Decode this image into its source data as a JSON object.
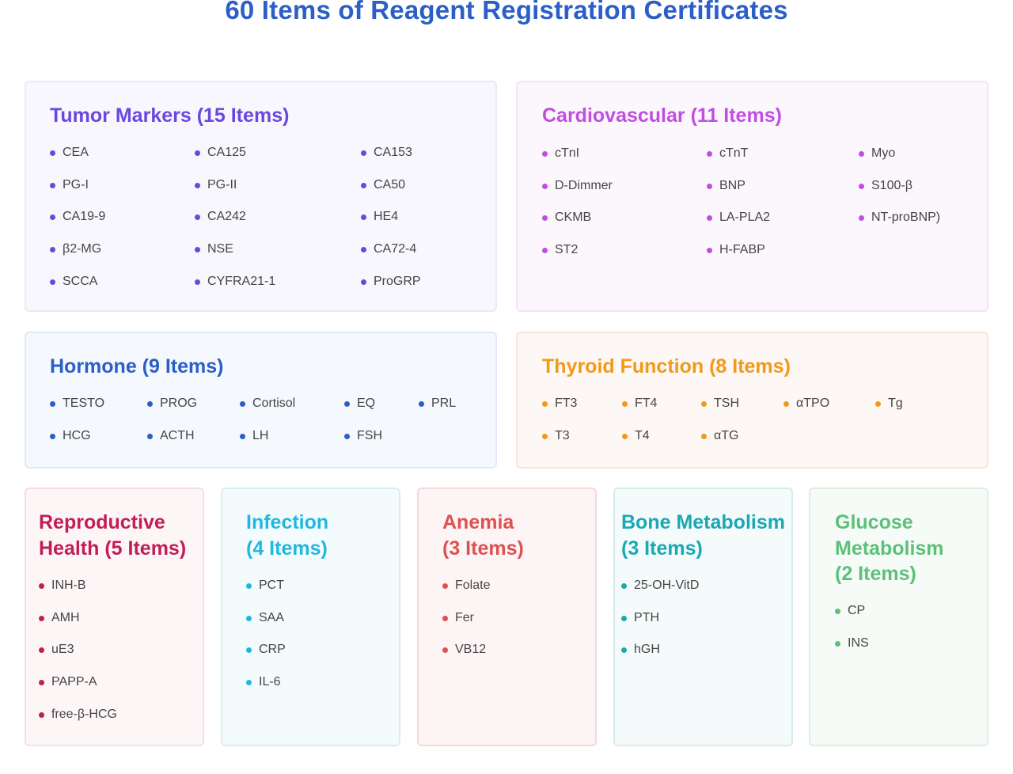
{
  "page_title": "60 Items of Reagent Registration Certificates",
  "colors": {
    "title": "#2b5fc7",
    "tumor": "#6a48e0",
    "cardio": "#c04ee0",
    "hormone": "#2b5fc7",
    "thyroid": "#f09a1a",
    "repro": "#c21d55",
    "infection": "#1fb8e0",
    "anemia": "#e05050",
    "bone": "#1aa8b4",
    "glucose": "#5cc07a"
  },
  "tumor": {
    "title": "Tumor Markers (15 Items)",
    "items": [
      "CEA",
      "CA125",
      "CA153",
      "PG-I",
      "PG-II",
      "CA50",
      "CA19-9",
      "CA242",
      "HE4",
      "β2-MG",
      "NSE",
      "CA72-4",
      "SCCA",
      "CYFRA21-1",
      "ProGRP"
    ]
  },
  "cardio": {
    "title": "Cardiovascular (11 Items)",
    "items": [
      "cTnI",
      "cTnT",
      "Myo",
      "D-Dimmer",
      "BNP",
      "S100-β",
      "CKMB",
      "LA-PLA2",
      "NT-proBNP)",
      "ST2",
      "H-FABP"
    ]
  },
  "hormone": {
    "title": "Hormone (9 Items)",
    "items": [
      "TESTO",
      "PROG",
      "Cortisol",
      "EQ",
      "PRL",
      "HCG",
      "ACTH",
      "LH",
      "FSH"
    ]
  },
  "thyroid": {
    "title": "Thyroid Function (8 Items)",
    "items": [
      "FT3",
      "FT4",
      "TSH",
      "αTPO",
      "Tg",
      "T3",
      "T4",
      "αTG"
    ]
  },
  "repro": {
    "title_line1": "Reproductive",
    "title_line2": "Health (5 Items)",
    "items": [
      "INH-B",
      "AMH",
      "uE3",
      "PAPP-A",
      "free-β-HCG"
    ]
  },
  "infection": {
    "title_line1": "Infection",
    "title_line2": "(4 Items)",
    "items": [
      "PCT",
      "SAA",
      "CRP",
      "IL-6"
    ]
  },
  "anemia": {
    "title_line1": "Anemia",
    "title_line2": "(3 Items)",
    "items": [
      "Folate",
      "Fer",
      "VB12"
    ]
  },
  "bone": {
    "title_line1": "Bone Metabolism",
    "title_line2": "(3 Items)",
    "items": [
      "25-OH-VitD",
      "PTH",
      "hGH"
    ]
  },
  "glucose": {
    "title_line1": "Glucose",
    "title_line2": "Metabolism",
    "title_line3": "(2 Items)",
    "items": [
      "CP",
      "INS"
    ]
  }
}
